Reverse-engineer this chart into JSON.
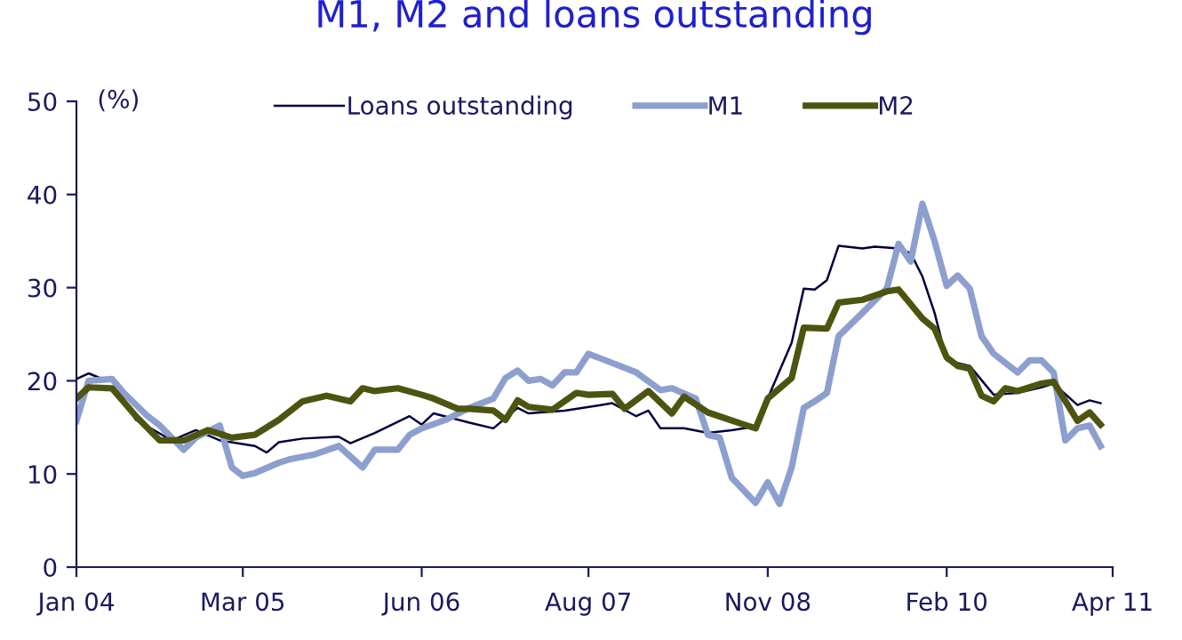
{
  "chart_data": {
    "type": "line",
    "title": "M1, M2 and loans outstanding",
    "ylabel": "(%)",
    "xlim": [
      "2004-01",
      "2011-04"
    ],
    "xticks": [
      {
        "value": "2004-01",
        "label": "Jan 04"
      },
      {
        "value": "2005-03",
        "label": "Mar 05"
      },
      {
        "value": "2006-06",
        "label": "Jun 06"
      },
      {
        "value": "2007-08",
        "label": "Aug 07"
      },
      {
        "value": "2008-11",
        "label": "Nov 08"
      },
      {
        "value": "2010-02",
        "label": "Feb 10"
      },
      {
        "value": "2011-04",
        "label": "Apr 11"
      }
    ],
    "ylim": [
      0,
      50
    ],
    "yticks": [
      0,
      10,
      20,
      30,
      40,
      50
    ],
    "grid": false,
    "legend": "top",
    "marker": "none",
    "line_style": "solid",
    "series": [
      {
        "name": "Loans outstanding",
        "color": "#000040",
        "x": [
          "2004-01",
          "2004-02",
          "2004-03",
          "2004-04",
          "2004-06",
          "2004-09",
          "2004-11",
          "2005-01",
          "2005-04",
          "2005-05",
          "2005-06",
          "2005-08",
          "2005-11",
          "2005-12",
          "2006-02",
          "2006-05",
          "2006-06",
          "2006-07",
          "2006-10",
          "2006-12",
          "2007-02",
          "2007-03",
          "2007-06",
          "2007-09",
          "2007-10",
          "2007-12",
          "2008-01",
          "2008-02",
          "2008-04",
          "2008-06",
          "2008-08",
          "2008-10",
          "2009-01",
          "2009-02",
          "2009-03",
          "2009-04",
          "2009-05",
          "2009-07",
          "2009-08",
          "2009-10",
          "2009-11",
          "2009-12",
          "2010-01",
          "2010-02",
          "2010-04",
          "2010-06",
          "2010-08",
          "2010-10",
          "2010-11",
          "2011-01",
          "2011-02",
          "2011-03"
        ],
        "values": [
          20.2,
          20.8,
          20.3,
          20.0,
          15.8,
          13.6,
          14.7,
          13.6,
          13.0,
          12.3,
          13.4,
          13.8,
          14.0,
          13.3,
          14.4,
          16.2,
          15.3,
          16.5,
          15.5,
          14.9,
          17.1,
          16.5,
          16.8,
          17.4,
          17.6,
          16.2,
          16.8,
          14.9,
          14.9,
          14.4,
          14.7,
          15.1,
          24.1,
          29.9,
          29.8,
          30.8,
          34.5,
          34.2,
          34.4,
          34.2,
          33.7,
          31.2,
          27.3,
          22.2,
          21.6,
          18.5,
          18.7,
          19.3,
          19.7,
          17.4,
          17.9,
          17.6
        ]
      },
      {
        "name": "M1",
        "color": "#8c9fce",
        "x": [
          "2004-01",
          "2004-02",
          "2004-04",
          "2004-05",
          "2004-07",
          "2004-08",
          "2004-10",
          "2004-11",
          "2005-01",
          "2005-02",
          "2005-03",
          "2005-04",
          "2005-06",
          "2005-07",
          "2005-09",
          "2005-11",
          "2006-01",
          "2006-02",
          "2006-04",
          "2006-05",
          "2006-06",
          "2006-08",
          "2006-10",
          "2006-12",
          "2007-01",
          "2007-02",
          "2007-03",
          "2007-04",
          "2007-05",
          "2007-06",
          "2007-07",
          "2007-08",
          "2007-09",
          "2007-12",
          "2008-02",
          "2008-03",
          "2008-05",
          "2008-06",
          "2008-07",
          "2008-08",
          "2008-10",
          "2008-11",
          "2008-12",
          "2009-01",
          "2009-02",
          "2009-03",
          "2009-04",
          "2009-05",
          "2009-07",
          "2009-09",
          "2009-10",
          "2009-11",
          "2009-12",
          "2010-01",
          "2010-02",
          "2010-03",
          "2010-04",
          "2010-05",
          "2010-06",
          "2010-08",
          "2010-09",
          "2010-10",
          "2010-11",
          "2010-12",
          "2011-01",
          "2011-02",
          "2011-03"
        ],
        "values": [
          15.7,
          20.0,
          20.2,
          18.7,
          16.2,
          15.2,
          12.6,
          13.9,
          15.2,
          10.7,
          9.8,
          10.1,
          11.2,
          11.6,
          12.1,
          13.0,
          10.7,
          12.6,
          12.6,
          14.2,
          14.9,
          15.8,
          17.1,
          18.1,
          20.3,
          21.1,
          20.0,
          20.2,
          19.5,
          20.9,
          20.9,
          22.9,
          22.4,
          20.9,
          19.0,
          19.2,
          18.1,
          14.2,
          13.9,
          9.6,
          6.9,
          9.1,
          6.8,
          10.7,
          17.1,
          17.8,
          18.7,
          24.8,
          27.3,
          29.9,
          34.7,
          32.8,
          39.0,
          35.0,
          30.2,
          31.3,
          29.9,
          24.8,
          22.9,
          20.9,
          22.2,
          22.2,
          20.9,
          13.6,
          14.9,
          15.2,
          13.0
        ]
      },
      {
        "name": "M2",
        "color": "#4d5410",
        "x": [
          "2004-01",
          "2004-02",
          "2004-04",
          "2004-06",
          "2004-08",
          "2004-10",
          "2004-12",
          "2005-02",
          "2005-04",
          "2005-06",
          "2005-08",
          "2005-10",
          "2005-12",
          "2006-01",
          "2006-02",
          "2006-04",
          "2006-06",
          "2006-07",
          "2006-09",
          "2006-10",
          "2006-12",
          "2007-01",
          "2007-02",
          "2007-03",
          "2007-05",
          "2007-07",
          "2007-08",
          "2007-10",
          "2007-11",
          "2008-01",
          "2008-03",
          "2008-04",
          "2008-06",
          "2008-09",
          "2008-10",
          "2008-11",
          "2009-01",
          "2009-02",
          "2009-04",
          "2009-05",
          "2009-07",
          "2009-09",
          "2009-10",
          "2009-12",
          "2010-01",
          "2010-02",
          "2010-03",
          "2010-04",
          "2010-05",
          "2010-06",
          "2010-07",
          "2010-08",
          "2010-10",
          "2010-11",
          "2011-01",
          "2011-02",
          "2011-03"
        ],
        "values": [
          18.1,
          19.3,
          19.2,
          16.2,
          13.6,
          13.6,
          14.7,
          13.9,
          14.2,
          15.8,
          17.8,
          18.4,
          17.8,
          19.2,
          18.9,
          19.2,
          18.5,
          18.1,
          17.0,
          17.0,
          16.8,
          15.8,
          17.9,
          17.2,
          16.9,
          18.7,
          18.5,
          18.6,
          17.0,
          18.9,
          16.5,
          18.3,
          16.6,
          15.3,
          14.9,
          18.1,
          20.3,
          25.7,
          25.6,
          28.4,
          28.7,
          29.6,
          29.8,
          26.7,
          25.6,
          22.5,
          21.6,
          21.3,
          18.4,
          17.8,
          19.2,
          18.9,
          19.7,
          19.9,
          15.7,
          16.6,
          15.3
        ]
      }
    ]
  }
}
